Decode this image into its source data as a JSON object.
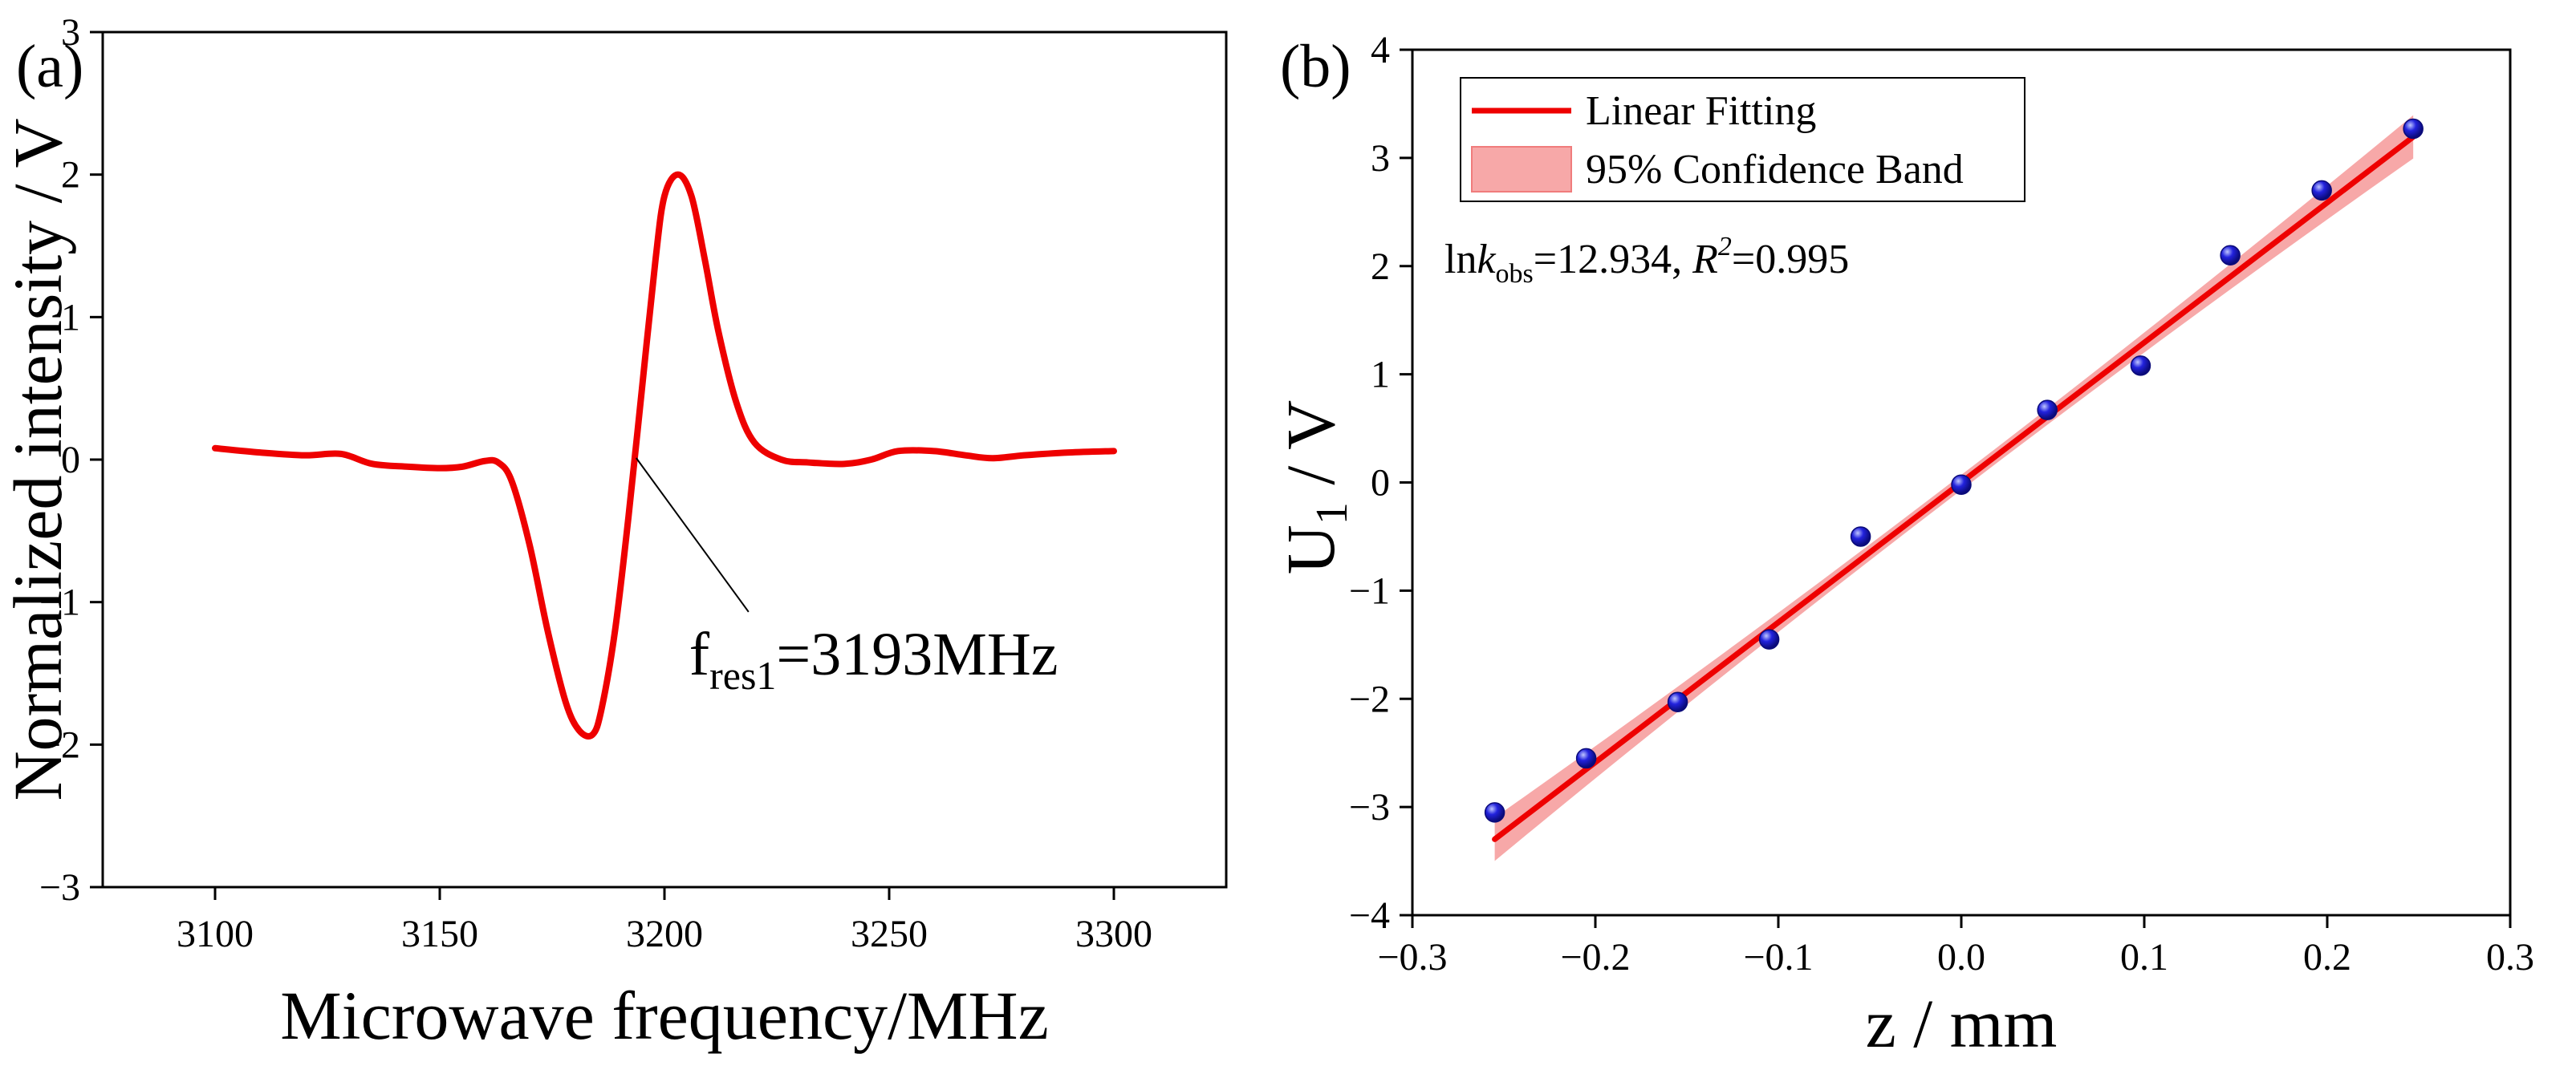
{
  "chart_data": [
    {
      "type": "line",
      "panel_label": "(a)",
      "xlabel": "Microwave frequency/MHz",
      "ylabel": "Normalized intensity / V",
      "xlim": [
        3075,
        3325
      ],
      "ylim": [
        -3,
        3
      ],
      "xticks": [
        3100,
        3150,
        3200,
        3250,
        3300
      ],
      "xtick_labels": [
        "3100",
        "3150",
        "3200",
        "3250",
        "3300"
      ],
      "yticks": [
        -3,
        -2,
        -1,
        0,
        1,
        2,
        3
      ],
      "ytick_labels": [
        "−3",
        "−2",
        "−1",
        "0",
        "1",
        "2",
        "3"
      ],
      "series": [
        {
          "name": "signal",
          "color": "#ee0000",
          "x": [
            3100,
            3110,
            3120,
            3128,
            3135,
            3143,
            3150,
            3155,
            3160,
            3163,
            3166,
            3170,
            3174,
            3178,
            3181,
            3184,
            3186,
            3189,
            3192,
            3195,
            3198,
            3200,
            3203,
            3206,
            3209,
            3212,
            3216,
            3220,
            3226,
            3232,
            3240,
            3246,
            3252,
            3260,
            3267,
            3273,
            3280,
            3290,
            3300
          ],
          "y": [
            0.08,
            0.05,
            0.03,
            0.04,
            -0.03,
            -0.05,
            -0.06,
            -0.05,
            -0.01,
            -0.02,
            -0.15,
            -0.6,
            -1.2,
            -1.7,
            -1.9,
            -1.93,
            -1.75,
            -1.2,
            -0.4,
            0.5,
            1.4,
            1.85,
            2.0,
            1.85,
            1.4,
            0.9,
            0.4,
            0.12,
            0.0,
            -0.02,
            -0.03,
            0.0,
            0.06,
            0.06,
            0.03,
            0.01,
            0.03,
            0.05,
            0.06
          ]
        }
      ],
      "annotation": {
        "text_main": "f",
        "text_sub": "res1",
        "text_tail": "=3193MHz",
        "point": [
          3193,
          0.0
        ],
        "text_at": [
          3208,
          -1.35
        ]
      }
    },
    {
      "type": "scatter",
      "panel_label": "(b)",
      "xlabel": "z / mm",
      "ylabel_main": "U",
      "ylabel_sub": "1",
      "ylabel_tail": " / V",
      "xlim": [
        -0.3,
        0.3
      ],
      "ylim": [
        -4,
        4
      ],
      "xticks": [
        -0.3,
        -0.2,
        -0.1,
        0.0,
        0.1,
        0.2,
        0.3
      ],
      "xtick_labels": [
        "−0.3",
        "−0.2",
        "−0.1",
        "0.0",
        "0.1",
        "0.2",
        "0.3"
      ],
      "yticks": [
        -4,
        -3,
        -2,
        -1,
        0,
        1,
        2,
        3,
        4
      ],
      "ytick_labels": [
        "−4",
        "−3",
        "−2",
        "−1",
        "0",
        "1",
        "2",
        "3",
        "4"
      ],
      "points": {
        "color": "#2222dd",
        "x": [
          -0.255,
          -0.205,
          -0.155,
          -0.105,
          -0.055,
          0.0,
          0.047,
          0.098,
          0.147,
          0.197,
          0.247
        ],
        "y": [
          -3.05,
          -2.55,
          -2.03,
          -1.45,
          -0.5,
          -0.02,
          0.67,
          1.08,
          2.1,
          2.7,
          3.27
        ]
      },
      "fit": {
        "slope": 12.934,
        "intercept": 0.0,
        "x_range": [
          -0.255,
          0.247
        ],
        "band_halfwidth_ends": 0.2,
        "band_halfwidth_center": 0.07,
        "color": "#ee0000",
        "band_color": "#f7a8a8"
      },
      "legend": {
        "position": "top-left",
        "entries": [
          "Linear Fitting",
          "95% Confidence Band"
        ]
      },
      "stats": {
        "ln": "ln",
        "k": "k",
        "k_sub": "obs",
        "value": "=12.934, ",
        "r": "R",
        "r_sup": "2",
        "r_value": "=0.995"
      }
    }
  ]
}
